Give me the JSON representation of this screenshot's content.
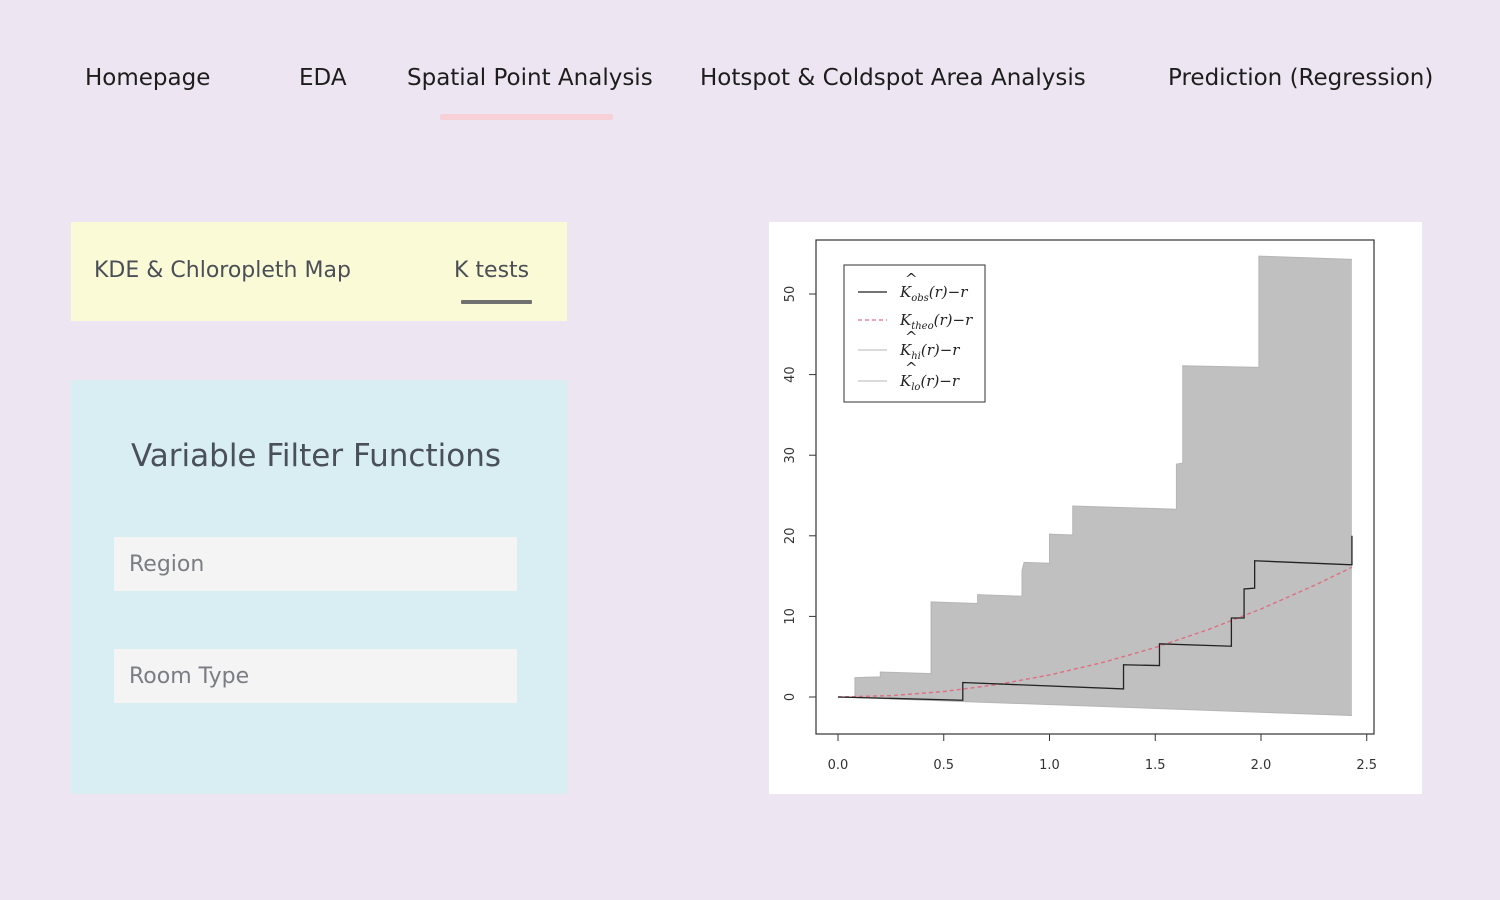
{
  "nav": {
    "items": [
      {
        "label": "Homepage"
      },
      {
        "label": "EDA"
      },
      {
        "label": "Spatial Point Analysis",
        "active": true
      },
      {
        "label": "Hotspot & Coldspot Area Analysis"
      },
      {
        "label": "Prediction (Regression)"
      }
    ],
    "active_color": "#f8d1d6"
  },
  "subtabs": {
    "items": [
      {
        "label": "KDE & Chloropleth Map"
      },
      {
        "label": "K tests",
        "active": true
      }
    ]
  },
  "filters": {
    "title": "Variable Filter Functions",
    "region_placeholder": "Region",
    "room_type_placeholder": "Room Type"
  },
  "chart_data": {
    "type": "line",
    "title": "",
    "xlabel": "",
    "ylabel": "",
    "xlim": [
      0,
      2.5
    ],
    "ylim": [
      -5,
      55
    ],
    "x_ticks": [
      "0.0",
      "0.5",
      "1.0",
      "1.5",
      "2.0",
      "2.5"
    ],
    "y_ticks": [
      "0",
      "10",
      "20",
      "30",
      "40",
      "50"
    ],
    "legend_position": "top-left",
    "legend": [
      {
        "hat": "^",
        "base": "K",
        "sub": "obs",
        "suffix": "(r)−r",
        "style": "solid-black"
      },
      {
        "hat": "",
        "base": "K",
        "sub": "theo",
        "suffix": "(r)−r",
        "style": "dashed-red"
      },
      {
        "hat": "^",
        "base": "K",
        "sub": "hi",
        "suffix": "(r)−r",
        "style": "solid-gray"
      },
      {
        "hat": "^",
        "base": "K",
        "sub": "lo",
        "suffix": "(r)−r",
        "style": "solid-gray"
      }
    ],
    "colors": {
      "obs": "#222222",
      "theo": "#df6f80",
      "envelope": "#c0c0c0"
    },
    "series": [
      {
        "name": "obs",
        "x": [
          0.0,
          0.59,
          0.59,
          1.35,
          1.35,
          1.52,
          1.52,
          1.86,
          1.86,
          1.92,
          1.92,
          1.97,
          1.97,
          2.43,
          2.43
        ],
        "y": [
          0.0,
          -0.4,
          1.8,
          1.0,
          4.0,
          3.9,
          6.6,
          6.3,
          9.8,
          9.8,
          13.4,
          13.5,
          16.9,
          16.4,
          20.0
        ]
      },
      {
        "name": "theo",
        "x": [
          0.0,
          0.25,
          0.5,
          0.75,
          1.0,
          1.25,
          1.5,
          1.75,
          2.0,
          2.25,
          2.43
        ],
        "y": [
          0.0,
          0.17,
          0.68,
          1.53,
          2.73,
          4.27,
          6.14,
          8.36,
          10.92,
          13.82,
          16.1
        ]
      },
      {
        "name": "hi",
        "x": [
          0.0,
          0.08,
          0.08,
          0.2,
          0.2,
          0.44,
          0.44,
          0.66,
          0.66,
          0.87,
          0.87,
          0.88,
          0.88,
          1.0,
          1.0,
          1.11,
          1.11,
          1.6,
          1.6,
          1.63,
          1.63,
          1.99,
          1.99,
          2.43
        ],
        "y": [
          0.0,
          0.0,
          2.4,
          2.5,
          3.1,
          2.9,
          11.8,
          11.6,
          12.7,
          12.5,
          15.7,
          16.7,
          16.7,
          16.6,
          20.2,
          20.1,
          23.7,
          23.3,
          28.9,
          29.0,
          41.1,
          40.9,
          54.7,
          54.3
        ]
      },
      {
        "name": "lo",
        "x": [
          0.0,
          2.43
        ],
        "y": [
          0.0,
          -2.3
        ]
      }
    ]
  }
}
